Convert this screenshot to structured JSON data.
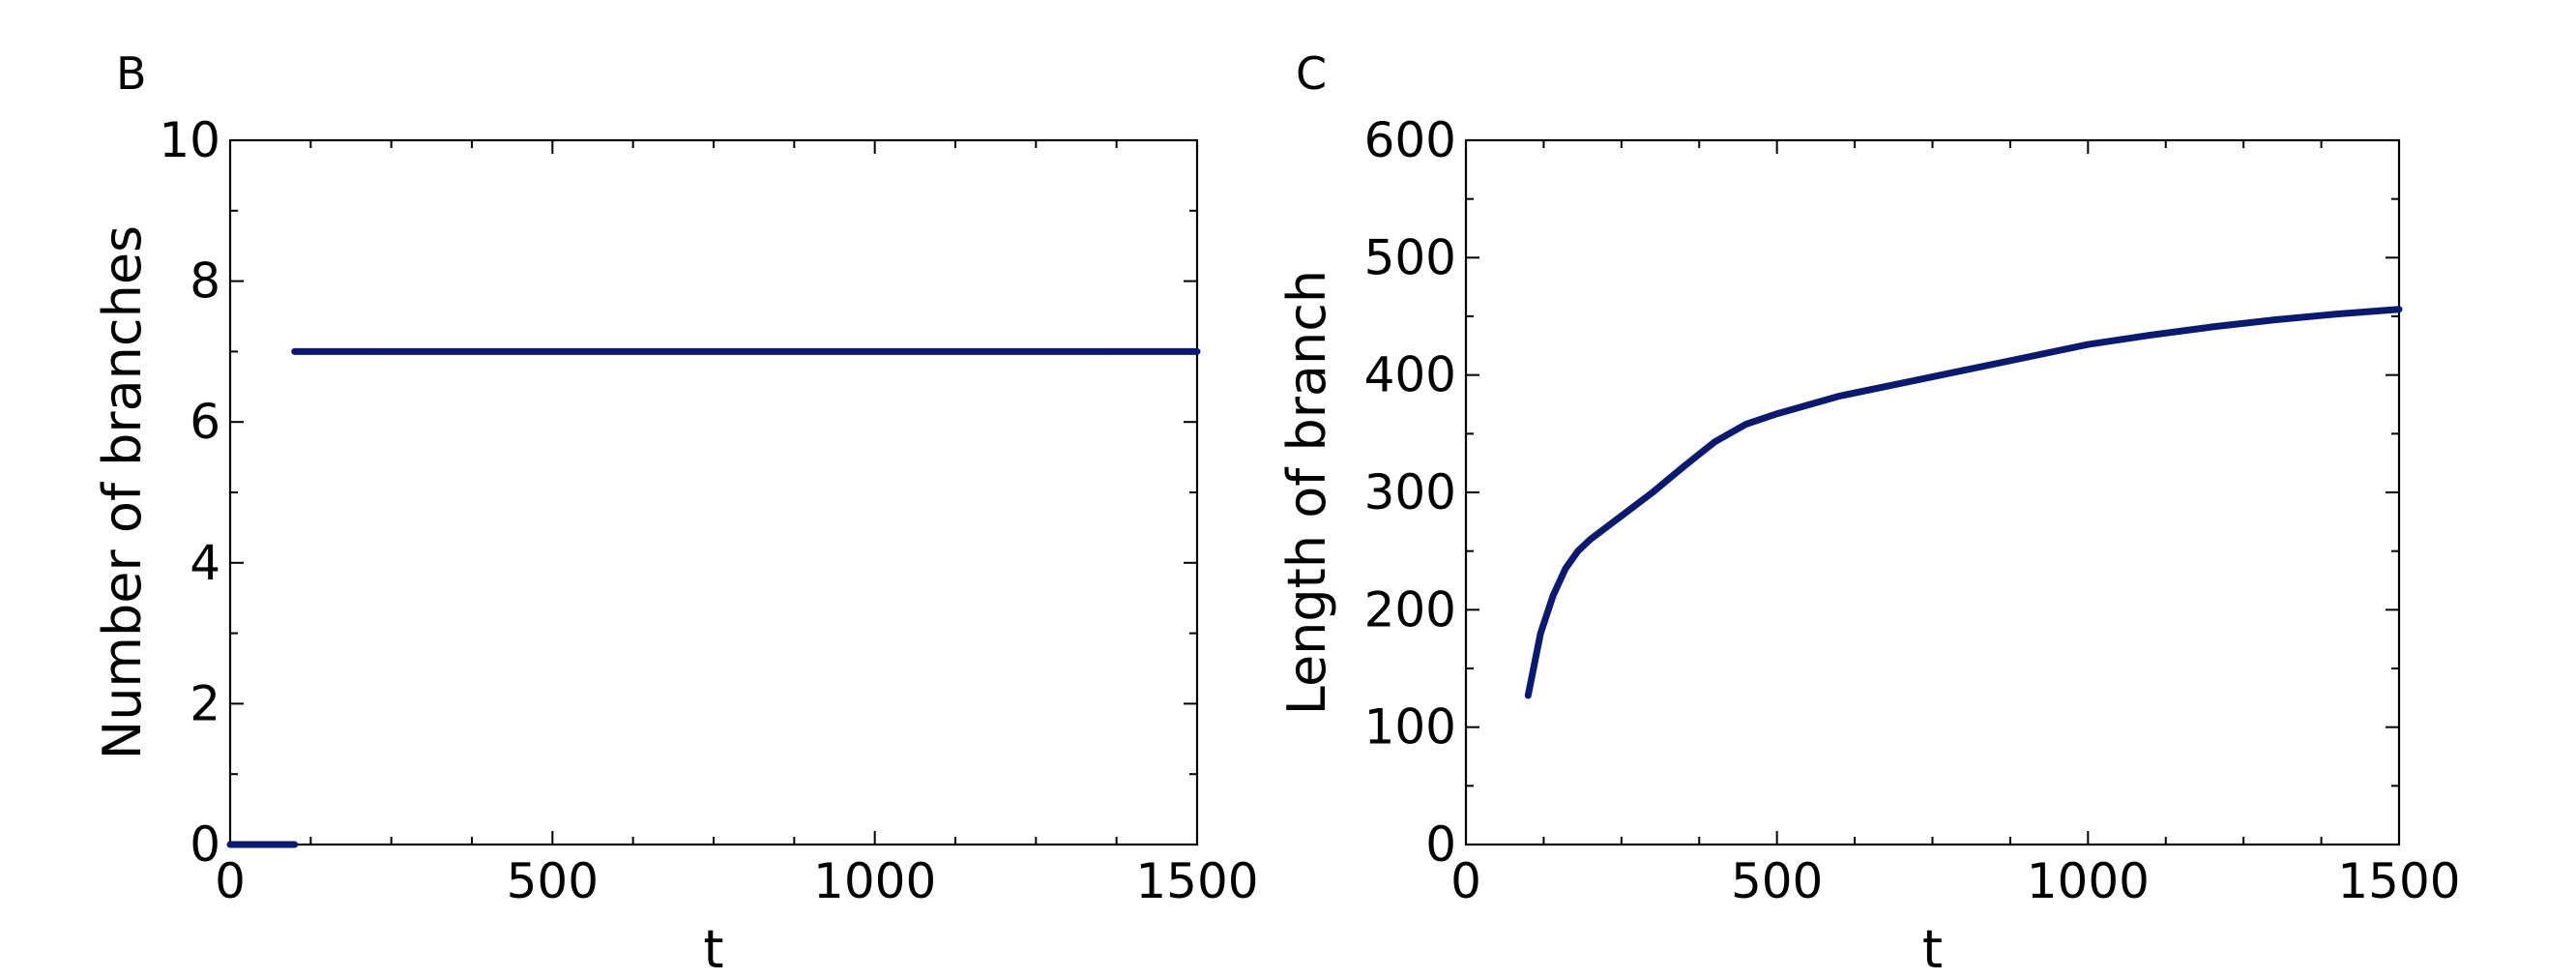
{
  "colors": {
    "series": "#0b1a6e",
    "axis": "#000000"
  },
  "chart_data": [
    {
      "panel": "B",
      "type": "line",
      "xlabel": "t",
      "ylabel": "Number of branches",
      "xlim": [
        0,
        1500
      ],
      "ylim": [
        0,
        10
      ],
      "xticks": [
        0,
        500,
        1000,
        1500
      ],
      "yticks": [
        0,
        2,
        4,
        6,
        8,
        10
      ],
      "series": [
        {
          "segments": [
            [
              [
                0,
                0
              ],
              [
                100,
                0
              ]
            ],
            [
              [
                100,
                7
              ],
              [
                1500,
                7
              ]
            ]
          ]
        }
      ]
    },
    {
      "panel": "C",
      "type": "line",
      "xlabel": "t",
      "ylabel": "Length of branch",
      "xlim": [
        0,
        1500
      ],
      "ylim": [
        0,
        600
      ],
      "xticks": [
        0,
        500,
        1000,
        1500
      ],
      "yticks": [
        0,
        100,
        200,
        300,
        400,
        500,
        600
      ],
      "series": [
        {
          "segments": [
            [
              [
                100,
                127
              ],
              [
                120,
                180
              ],
              [
                140,
                212
              ],
              [
                160,
                235
              ],
              [
                180,
                250
              ],
              [
                200,
                260
              ],
              [
                250,
                280
              ],
              [
                300,
                300
              ],
              [
                350,
                322
              ],
              [
                400,
                343
              ],
              [
                450,
                358
              ],
              [
                500,
                367
              ],
              [
                600,
                382
              ],
              [
                700,
                393
              ],
              [
                800,
                404
              ],
              [
                900,
                415
              ],
              [
                1000,
                426
              ],
              [
                1100,
                434
              ],
              [
                1200,
                441
              ],
              [
                1300,
                447
              ],
              [
                1400,
                452
              ],
              [
                1500,
                456
              ]
            ]
          ]
        }
      ]
    }
  ]
}
